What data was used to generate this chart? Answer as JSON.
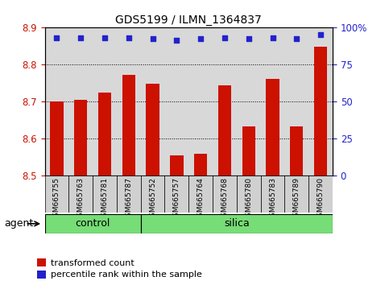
{
  "title": "GDS5199 / ILMN_1364837",
  "samples": [
    "GSM665755",
    "GSM665763",
    "GSM665781",
    "GSM665787",
    "GSM665752",
    "GSM665757",
    "GSM665764",
    "GSM665768",
    "GSM665780",
    "GSM665783",
    "GSM665789",
    "GSM665790"
  ],
  "bar_values": [
    8.7,
    8.703,
    8.723,
    8.77,
    8.748,
    8.553,
    8.558,
    8.743,
    8.633,
    8.76,
    8.633,
    8.848
  ],
  "percentile_values": [
    93,
    93,
    93,
    93,
    92,
    91,
    92,
    93,
    92,
    93,
    92,
    95
  ],
  "bar_color": "#cc1100",
  "dot_color": "#2222cc",
  "ylim_left": [
    8.5,
    8.9
  ],
  "ylim_right": [
    0,
    100
  ],
  "yticks_left": [
    8.5,
    8.6,
    8.7,
    8.8,
    8.9
  ],
  "yticks_right": [
    0,
    25,
    50,
    75,
    100
  ],
  "control_count": 4,
  "silica_count": 8,
  "control_color": "#77dd77",
  "silica_color": "#77dd77",
  "agent_label": "agent",
  "control_label": "control",
  "silica_label": "silica",
  "legend_bar_label": "transformed count",
  "legend_dot_label": "percentile rank within the sample",
  "bar_width": 0.55,
  "background_color": "#ffffff",
  "plot_bg_color": "#d8d8d8",
  "font_size": 8.5,
  "title_fontsize": 10
}
